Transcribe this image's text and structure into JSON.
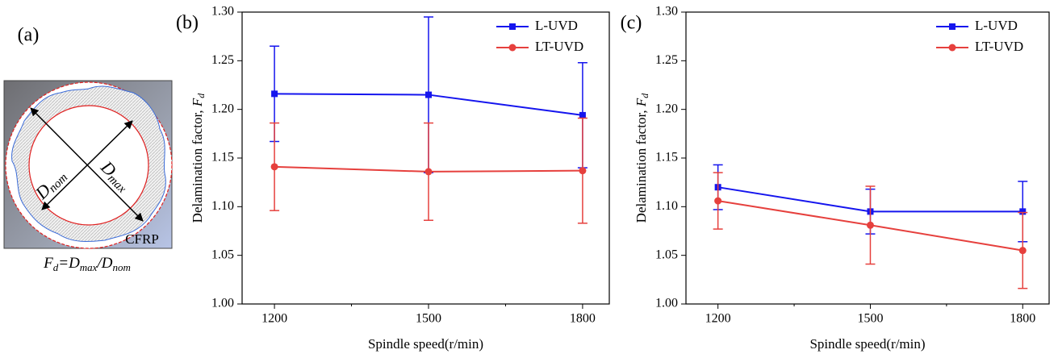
{
  "panel_a": {
    "label": "(a)",
    "material": "CFRP",
    "d_nom": [
      "D",
      "nom"
    ],
    "d_max": [
      "D",
      "max"
    ],
    "formula": [
      [
        "F",
        "d"
      ],
      [
        "=D",
        "max"
      ],
      [
        "/D",
        "nom"
      ]
    ]
  },
  "chart_data": [
    {
      "type": "line",
      "panel_label": "(b)",
      "xlabel": "Spindle speed(r/min)",
      "ylabel": [
        "Delamination factor, ",
        "F",
        "d"
      ],
      "x": [
        1200,
        1500,
        1800
      ],
      "xlim": [
        1137,
        1852
      ],
      "xticks": [
        1200,
        1500,
        1800
      ],
      "xminorticks": [
        1350,
        1650
      ],
      "ylim": [
        1.0,
        1.3
      ],
      "yticks": [
        {
          "value": 1.0,
          "label": "1.00"
        },
        {
          "value": 1.05,
          "label": "1.05"
        },
        {
          "value": 1.1,
          "label": "1.10"
        },
        {
          "value": 1.15,
          "label": "1.15"
        },
        {
          "value": 1.2,
          "label": "1.20"
        },
        {
          "value": 1.25,
          "label": "1.25"
        },
        {
          "value": 1.3,
          "label": "1.30"
        }
      ],
      "legend": "top-right",
      "series": [
        {
          "name": "L-UVD",
          "color": "#1515ee",
          "marker": "square",
          "values": [
            1.216,
            1.215,
            1.194
          ],
          "errors": [
            0.049,
            0.08,
            0.054
          ]
        },
        {
          "name": "LT-UVD",
          "color": "#e6403d",
          "marker": "circle",
          "values": [
            1.141,
            1.136,
            1.137
          ],
          "errors": [
            0.045,
            0.05,
            0.054
          ]
        }
      ]
    },
    {
      "type": "line",
      "panel_label": "(c)",
      "xlabel": "Spindle speed(r/min)",
      "ylabel": [
        "Delamination factor, ",
        "F",
        "d"
      ],
      "x": [
        1200,
        1500,
        1800
      ],
      "xlim": [
        1137,
        1852
      ],
      "xticks": [
        1200,
        1500,
        1800
      ],
      "xminorticks": [
        1350,
        1650
      ],
      "ylim": [
        1.0,
        1.3
      ],
      "yticks": [
        {
          "value": 1.0,
          "label": "1.00"
        },
        {
          "value": 1.05,
          "label": "1.05"
        },
        {
          "value": 1.1,
          "label": "1.10"
        },
        {
          "value": 1.15,
          "label": "1.15"
        },
        {
          "value": 1.2,
          "label": "1.20"
        },
        {
          "value": 1.25,
          "label": "1.25"
        },
        {
          "value": 1.3,
          "label": "1.30"
        }
      ],
      "legend": "top-right",
      "series": [
        {
          "name": "L-UVD",
          "color": "#1515ee",
          "marker": "square",
          "values": [
            1.12,
            1.095,
            1.095
          ],
          "errors": [
            0.023,
            0.023,
            0.031
          ]
        },
        {
          "name": "LT-UVD",
          "color": "#e6403d",
          "marker": "circle",
          "values": [
            1.106,
            1.081,
            1.055
          ],
          "errors": [
            0.029,
            0.04,
            0.039
          ]
        }
      ]
    }
  ]
}
